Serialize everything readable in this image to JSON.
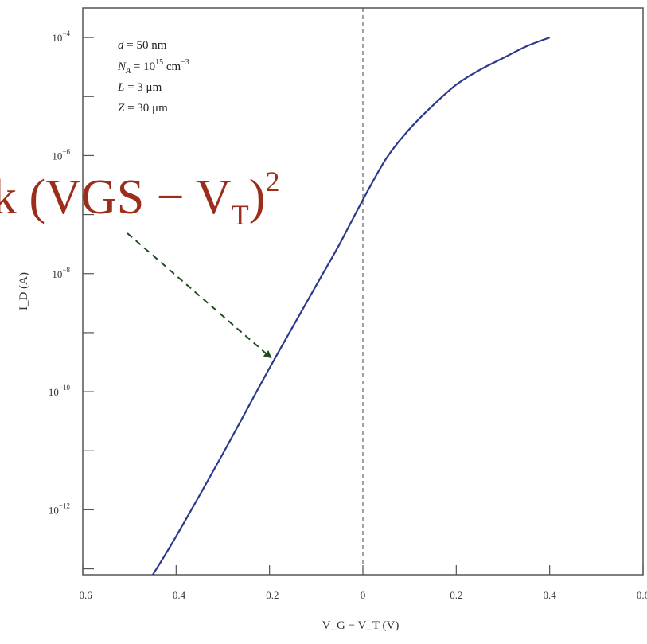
{
  "chart_data": {
    "type": "line",
    "xlabel": "V_G − V_T (V)",
    "ylabel": "I_D (A)",
    "xlim": [
      -0.6,
      0.6
    ],
    "ylim_log10": [
      -13.1,
      -3.5
    ],
    "y_scale": "log",
    "x_ticks": [
      -0.6,
      -0.4,
      -0.2,
      0,
      0.2,
      0.4,
      0.6
    ],
    "x_tick_labels": [
      "−0.6",
      "−0.4",
      "−0.2",
      "0",
      "0.2",
      "0.4",
      "0.6"
    ],
    "y_ticks_log10": [
      -12,
      -10,
      -8,
      -6,
      -4
    ],
    "y_minor_ticks_log10": [
      -13,
      -11,
      -9,
      -7,
      -5
    ],
    "vline_x": 0,
    "series": [
      {
        "color": "#2b3a8a",
        "x": [
          -0.45,
          -0.4,
          -0.3,
          -0.2,
          -0.1,
          -0.05,
          0,
          0.05,
          0.1,
          0.15,
          0.2,
          0.25,
          0.3,
          0.35,
          0.4
        ],
        "log10_y": [
          -13.1,
          -12.45,
          -11.05,
          -9.6,
          -8.2,
          -7.5,
          -6.75,
          -6.05,
          -5.55,
          -5.15,
          -4.8,
          -4.55,
          -4.35,
          -4.15,
          -4.0
        ]
      }
    ],
    "parameters": {
      "d": {
        "sym": "d",
        "eq": " = 50 nm"
      },
      "na": {
        "sym": "N",
        "sub": "A",
        "eq": " = 10",
        "sup": "15",
        "unit": " cm",
        "unitsup": "−3"
      },
      "l": {
        "sym": "L",
        "eq": " = 3 μm"
      },
      "z": {
        "sym": "Z",
        "eq": " = 30 μm"
      }
    },
    "annotation": {
      "text_pre": "k (VGS − V",
      "sub": "T",
      "close": ")",
      "sup": "2",
      "arrow_color": "#1f4d1f"
    }
  }
}
